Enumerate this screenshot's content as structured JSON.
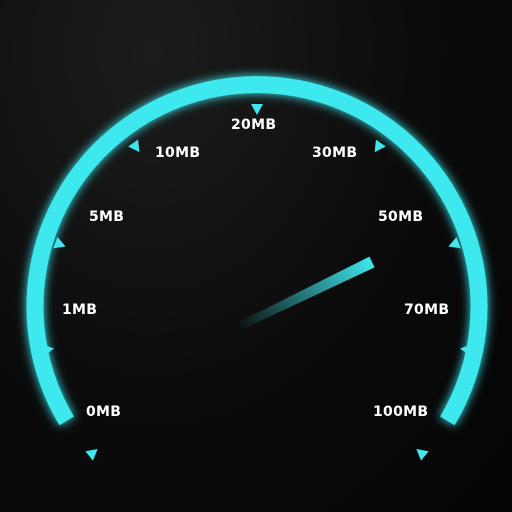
{
  "gauge": {
    "accent_color": "#3ee8ee",
    "tick_labels": [
      "0MB",
      "1MB",
      "5MB",
      "10MB",
      "20MB",
      "30MB",
      "50MB",
      "70MB",
      "100MB"
    ],
    "needle_reading_mb": 55
  }
}
